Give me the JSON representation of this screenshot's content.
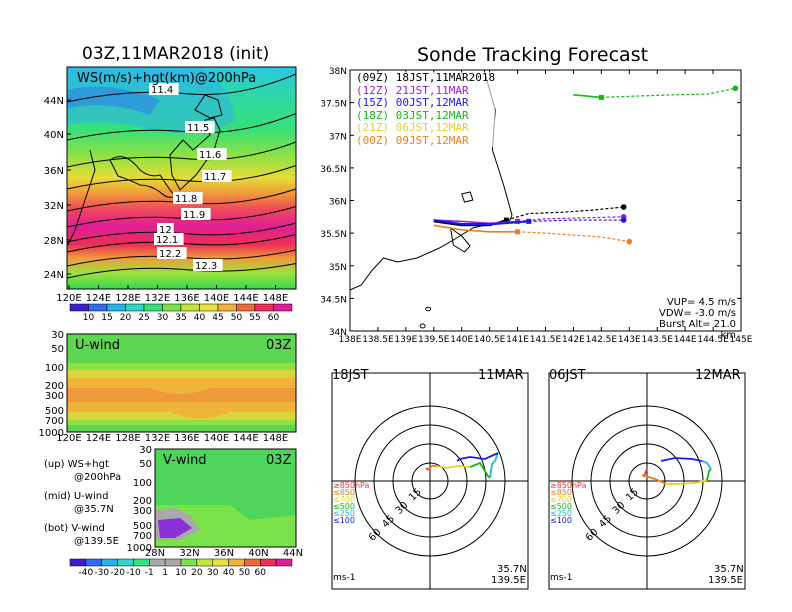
{
  "left": {
    "title": "03Z,11MAR2018 (init)",
    "map": {
      "label": "WS(m/s)+hgt(km)@200hPa",
      "lat_labels": [
        "44N",
        "40N",
        "36N",
        "32N",
        "28N",
        "24N"
      ],
      "lon_labels": [
        "120E",
        "124E",
        "128E",
        "132E",
        "136E",
        "140E",
        "144E",
        "148E"
      ],
      "contour_labels": [
        "11.4",
        "11.5",
        "11.6",
        "11.7",
        "11.8",
        "11.9",
        "12",
        "12.1",
        "12.2",
        "12.3"
      ],
      "colorbar_ticks": [
        "10",
        "15",
        "20",
        "25",
        "30",
        "35",
        "40",
        "45",
        "50",
        "55",
        "60"
      ],
      "colorbar_colors": [
        "#3b1fcf",
        "#2f6cf0",
        "#25b3e8",
        "#2fd6c6",
        "#36e07a",
        "#7be34a",
        "#c2e53a",
        "#e8e236",
        "#f0b43a",
        "#ef6a3a",
        "#ec2f55",
        "#e01d96"
      ]
    },
    "uwind": {
      "label": "U-wind",
      "time": "03Z",
      "p_labels": [
        "30",
        "50",
        "100",
        "200",
        "300",
        "500",
        "700",
        "1000"
      ],
      "lon_labels": [
        "120E",
        "124E",
        "128E",
        "132E",
        "136E",
        "140E",
        "144E",
        "148E"
      ]
    },
    "vwind": {
      "label": "V-wind",
      "time": "03Z",
      "p_labels": [
        "30",
        "50",
        "100",
        "200",
        "300",
        "500",
        "700",
        "1000"
      ],
      "lat_labels": [
        "28N",
        "32N",
        "36N",
        "40N",
        "44N"
      ]
    },
    "legend_text": {
      "up1": "(up) WS+hgt",
      "up2": "@200hPa",
      "mid1": "(mid) U-wind",
      "mid2": "@35.7N",
      "bot1": "(bot) V-wind",
      "bot2": "@139.5E"
    },
    "bottom_colorbar_ticks": [
      "-40",
      "-30",
      "-20",
      "-10",
      "-1",
      "1",
      "10",
      "20",
      "30",
      "40",
      "50",
      "60"
    ],
    "bottom_colorbar_colors": [
      "#3b1fcf",
      "#2f6cf0",
      "#25b3e8",
      "#2fd6c6",
      "#36e07a",
      "#a9a9a9",
      "#a9a9a9",
      "#7be34a",
      "#c2e53a",
      "#e8e236",
      "#f0b43a",
      "#ef6a3a",
      "#ec2f55",
      "#e01d96"
    ]
  },
  "right": {
    "title": "Sonde Tracking Forecast",
    "map": {
      "lat_labels": [
        "38N",
        "37.5N",
        "37N",
        "36.5N",
        "36N",
        "35.5N",
        "35N",
        "34.5N",
        "34N"
      ],
      "lon_labels": [
        "138E",
        "138.5E",
        "139E",
        "139.5E",
        "140E",
        "140.5E",
        "141E",
        "141.5E",
        "142E",
        "142.5E",
        "143E",
        "143.5E",
        "144E",
        "144.5E",
        "145E"
      ],
      "xlim": [
        138,
        145
      ],
      "ylim": [
        34,
        38
      ],
      "legend": [
        {
          "text": "(09Z)  18JST,11MAR2018",
          "color": "#000000"
        },
        {
          "text": "(12Z)  21JST,11MAR",
          "color": "#9b1fd6"
        },
        {
          "text": "(15Z)  00JST,12MAR",
          "color": "#1a1af0"
        },
        {
          "text": "(18Z)  03JST,12MAR",
          "color": "#15b815"
        },
        {
          "text": "(21Z)  06JST,12MAR",
          "color": "#e6d21a"
        },
        {
          "text": "(00Z)  09JST,12MAR",
          "color": "#ef7d1a"
        }
      ],
      "params": {
        "vup": "VUP=  4.5 m/s",
        "vdw": "VDW= -3.0 m/s",
        "burst": "Burst Alt= 21.0 km"
      }
    },
    "polar_left": {
      "time": "18JST",
      "date": "11MAR",
      "loc1": "35.7N",
      "loc2": "139.5E",
      "unit": "ms-1"
    },
    "polar_right": {
      "time": "06JST",
      "date": "12MAR",
      "loc1": "35.7N",
      "loc2": "139.5E",
      "unit": "ms-1"
    },
    "polar_rings": [
      "15",
      "30",
      "45",
      "60"
    ],
    "polar_levels": [
      {
        "text": "≥850hPa",
        "color": "#ef3a3a"
      },
      {
        "text": "≤850",
        "color": "#ef7d1a"
      },
      {
        "text": "≤700",
        "color": "#e6d21a"
      },
      {
        "text": "≤500",
        "color": "#15b815"
      },
      {
        "text": "≤250",
        "color": "#1fb8d6"
      },
      {
        "text": "≤100",
        "color": "#1a1af0"
      }
    ]
  },
  "chart_data": [
    {
      "type": "line",
      "title": "Sonde Tracking Forecast",
      "xlim": [
        138,
        145
      ],
      "ylim": [
        34,
        38
      ],
      "series": [
        {
          "name": "(09Z) 18JST,11MAR2018",
          "x": [
            139.5,
            140.0,
            140.5,
            140.8,
            141.2,
            141.8,
            142.3,
            142.9
          ],
          "y": [
            35.68,
            35.62,
            35.62,
            35.7,
            35.8,
            35.82,
            35.85,
            35.9
          ]
        },
        {
          "name": "(12Z) 21JST,11MAR",
          "x": [
            139.5,
            140.0,
            140.5,
            141.0,
            141.5,
            142.0,
            142.9
          ],
          "y": [
            35.7,
            35.68,
            35.65,
            35.68,
            35.72,
            35.73,
            35.75
          ]
        },
        {
          "name": "(15Z) 00JST,12MAR",
          "x": [
            139.5,
            140.0,
            140.6,
            141.2,
            142.0,
            142.9
          ],
          "y": [
            35.7,
            35.64,
            35.64,
            35.68,
            35.7,
            35.7
          ]
        },
        {
          "name": "(18Z) 03JST,12MAR",
          "x": [
            142.0,
            142.5,
            143.1,
            143.8,
            144.4,
            144.9
          ],
          "y": [
            37.62,
            37.58,
            37.6,
            37.62,
            37.63,
            37.72
          ]
        },
        {
          "name": "(00Z) 09JST,12MAR",
          "x": [
            139.5,
            140.0,
            140.5,
            141.0,
            141.5,
            142.0,
            142.5,
            143.0
          ],
          "y": [
            35.62,
            35.55,
            35.52,
            35.52,
            35.5,
            35.47,
            35.44,
            35.37
          ]
        }
      ]
    }
  ]
}
